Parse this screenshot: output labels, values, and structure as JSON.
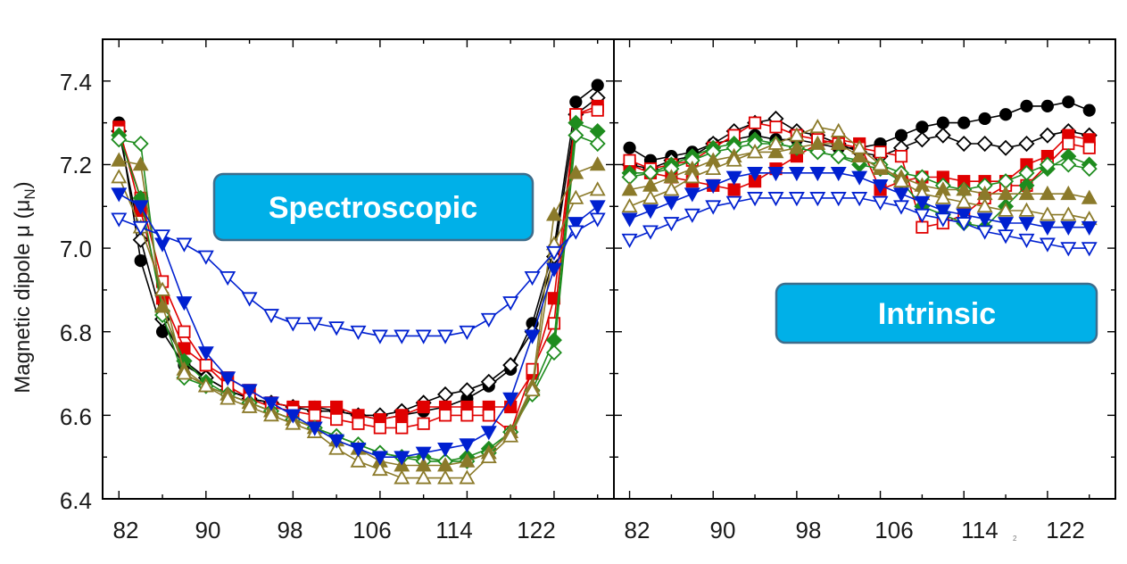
{
  "y_axis": {
    "label": "Magnetic dipole μ (μ",
    "sub": "N",
    "close": ")",
    "ticks": [
      "6.4",
      "6.6",
      "6.8",
      "7.0",
      "7.2",
      "7.4"
    ]
  },
  "x_ticks": [
    "82",
    "90",
    "98",
    "106",
    "114",
    "122"
  ],
  "footnote": "2",
  "chart_data": [
    {
      "type": "line",
      "badge": "Spectroscopic",
      "xlim": [
        80.5,
        127.5
      ],
      "ylim": [
        6.4,
        7.5
      ],
      "x": [
        82,
        84,
        86,
        88,
        90,
        92,
        94,
        96,
        98,
        100,
        102,
        104,
        106,
        108,
        110,
        112,
        114,
        116,
        118,
        120,
        122,
        124,
        126
      ],
      "series": [
        {
          "name": "black filled circle",
          "marker": "circle",
          "filled": true,
          "color": "#000000",
          "values": [
            7.3,
            6.97,
            6.8,
            6.72,
            6.69,
            6.66,
            6.64,
            6.63,
            6.62,
            6.62,
            6.61,
            6.6,
            6.59,
            6.6,
            6.61,
            6.62,
            6.64,
            6.67,
            6.71,
            6.82,
            7.0,
            7.35,
            7.39
          ]
        },
        {
          "name": "black open diamond",
          "marker": "diamond",
          "filled": false,
          "color": "#000000",
          "values": [
            7.28,
            7.02,
            6.83,
            6.73,
            6.69,
            6.66,
            6.64,
            6.63,
            6.62,
            6.61,
            6.61,
            6.6,
            6.6,
            6.61,
            6.63,
            6.65,
            6.66,
            6.68,
            6.72,
            6.8,
            6.98,
            7.32,
            7.36
          ]
        },
        {
          "name": "red filled square",
          "marker": "square",
          "filled": true,
          "color": "#e00000",
          "values": [
            7.29,
            7.09,
            6.88,
            6.76,
            6.72,
            6.69,
            6.66,
            6.63,
            6.62,
            6.62,
            6.62,
            6.6,
            6.59,
            6.6,
            6.62,
            6.62,
            6.62,
            6.62,
            6.62,
            6.7,
            6.88,
            7.32,
            7.34
          ]
        },
        {
          "name": "red open square",
          "marker": "square",
          "filled": false,
          "color": "#e00000",
          "values": [
            7.28,
            7.12,
            6.92,
            6.8,
            6.72,
            6.67,
            6.64,
            6.62,
            6.61,
            6.6,
            6.59,
            6.58,
            6.57,
            6.57,
            6.58,
            6.6,
            6.6,
            6.6,
            6.56,
            6.71,
            6.82,
            7.32,
            7.33
          ]
        },
        {
          "name": "green filled diamond",
          "marker": "diamond",
          "filled": true,
          "color": "#1e8c1e",
          "values": [
            7.27,
            7.12,
            6.85,
            6.73,
            6.68,
            6.65,
            6.63,
            6.61,
            6.59,
            6.57,
            6.55,
            6.53,
            6.51,
            6.5,
            6.5,
            6.49,
            6.5,
            6.52,
            6.56,
            6.66,
            6.78,
            7.3,
            7.28
          ]
        },
        {
          "name": "green open diamond",
          "marker": "diamond",
          "filled": false,
          "color": "#1e8c1e",
          "values": [
            7.26,
            7.25,
            6.84,
            6.69,
            6.67,
            6.65,
            6.63,
            6.61,
            6.59,
            6.57,
            6.55,
            6.53,
            6.51,
            6.5,
            6.49,
            6.49,
            6.49,
            6.51,
            6.56,
            6.65,
            6.75,
            7.27,
            7.25
          ]
        },
        {
          "name": "olive filled triangle",
          "marker": "triangle-up",
          "filled": true,
          "color": "#8b7a2a",
          "values": [
            7.21,
            7.2,
            6.86,
            6.71,
            6.67,
            6.65,
            6.63,
            6.61,
            6.59,
            6.57,
            6.54,
            6.52,
            6.49,
            6.48,
            6.48,
            6.48,
            6.49,
            6.51,
            6.56,
            6.67,
            7.08,
            7.18,
            7.2
          ]
        },
        {
          "name": "olive open triangle",
          "marker": "triangle-up",
          "filled": false,
          "color": "#8b7a2a",
          "values": [
            7.17,
            7.05,
            6.9,
            6.7,
            6.67,
            6.64,
            6.62,
            6.6,
            6.58,
            6.56,
            6.52,
            6.49,
            6.47,
            6.45,
            6.45,
            6.45,
            6.45,
            6.5,
            6.55,
            6.66,
            7.01,
            7.12,
            7.14
          ]
        },
        {
          "name": "blue filled triangle down",
          "marker": "triangle-down",
          "filled": true,
          "color": "#0020d0",
          "values": [
            7.13,
            7.1,
            7.01,
            6.87,
            6.75,
            6.69,
            6.66,
            6.63,
            6.6,
            6.57,
            6.54,
            6.52,
            6.5,
            6.5,
            6.51,
            6.52,
            6.53,
            6.56,
            6.64,
            6.79,
            6.95,
            7.06,
            7.1
          ]
        },
        {
          "name": "blue open triangle down",
          "marker": "triangle-down",
          "filled": false,
          "color": "#0020d0",
          "values": [
            7.07,
            7.05,
            7.03,
            7.01,
            6.98,
            6.93,
            6.88,
            6.84,
            6.82,
            6.82,
            6.81,
            6.8,
            6.79,
            6.79,
            6.79,
            6.79,
            6.8,
            6.83,
            6.87,
            6.93,
            6.99,
            7.04,
            7.07
          ]
        }
      ]
    },
    {
      "type": "line",
      "badge": "Intrinsic",
      "xlim": [
        80.5,
        128.5
      ],
      "ylim": [
        6.4,
        7.5
      ],
      "x": [
        82,
        84,
        86,
        88,
        90,
        92,
        94,
        96,
        98,
        100,
        102,
        104,
        106,
        108,
        110,
        112,
        114,
        116,
        118,
        120,
        122,
        124,
        126
      ],
      "series": [
        {
          "name": "black filled circle",
          "marker": "circle",
          "filled": true,
          "color": "#000000",
          "values": [
            7.24,
            7.21,
            7.22,
            7.23,
            7.25,
            7.26,
            7.27,
            7.26,
            7.26,
            7.25,
            7.24,
            7.24,
            7.25,
            7.27,
            7.29,
            7.3,
            7.3,
            7.31,
            7.32,
            7.34,
            7.34,
            7.35,
            7.33
          ]
        },
        {
          "name": "black open diamond",
          "marker": "diamond",
          "filled": false,
          "color": "#000000",
          "values": [
            7.2,
            7.19,
            7.21,
            7.22,
            7.25,
            7.28,
            7.3,
            7.31,
            7.28,
            7.27,
            7.25,
            7.23,
            7.22,
            7.24,
            7.26,
            7.27,
            7.25,
            7.25,
            7.24,
            7.25,
            7.27,
            7.28,
            7.27
          ]
        },
        {
          "name": "red filled square",
          "marker": "square",
          "filled": true,
          "color": "#e00000",
          "values": [
            7.2,
            7.18,
            7.17,
            7.16,
            7.15,
            7.14,
            7.16,
            7.19,
            7.22,
            7.25,
            7.26,
            7.25,
            7.14,
            7.16,
            7.17,
            7.17,
            7.16,
            7.16,
            7.16,
            7.2,
            7.22,
            7.27,
            7.26
          ]
        },
        {
          "name": "red open square",
          "marker": "square",
          "filled": false,
          "color": "#e00000",
          "values": [
            7.21,
            7.19,
            7.2,
            7.21,
            7.24,
            7.27,
            7.3,
            7.29,
            7.27,
            7.26,
            7.25,
            7.24,
            7.23,
            7.22,
            7.05,
            7.06,
            7.08,
            7.12,
            7.15,
            7.15,
            7.2,
            7.25,
            7.24
          ]
        },
        {
          "name": "green filled diamond",
          "marker": "diamond",
          "filled": true,
          "color": "#1e8c1e",
          "values": [
            7.18,
            7.18,
            7.2,
            7.22,
            7.24,
            7.25,
            7.26,
            7.25,
            7.24,
            7.23,
            7.22,
            7.2,
            7.19,
            7.16,
            7.1,
            7.08,
            7.06,
            7.05,
            7.1,
            7.15,
            7.19,
            7.22,
            7.2
          ]
        },
        {
          "name": "green open diamond",
          "marker": "diamond",
          "filled": false,
          "color": "#1e8c1e",
          "values": [
            7.17,
            7.18,
            7.19,
            7.21,
            7.23,
            7.24,
            7.25,
            7.25,
            7.24,
            7.23,
            7.22,
            7.21,
            7.2,
            7.18,
            7.17,
            7.15,
            7.14,
            7.15,
            7.16,
            7.18,
            7.2,
            7.2,
            7.19
          ]
        },
        {
          "name": "olive filled triangle",
          "marker": "triangle-up",
          "filled": true,
          "color": "#8b7a2a",
          "values": [
            7.14,
            7.15,
            7.17,
            7.19,
            7.21,
            7.22,
            7.23,
            7.23,
            7.24,
            7.25,
            7.25,
            7.22,
            7.19,
            7.17,
            7.15,
            7.14,
            7.14,
            7.13,
            7.13,
            7.13,
            7.13,
            7.13,
            7.12
          ]
        },
        {
          "name": "olive open triangle",
          "marker": "triangle-up",
          "filled": false,
          "color": "#8b7a2a",
          "values": [
            7.1,
            7.12,
            7.14,
            7.17,
            7.19,
            7.21,
            7.23,
            7.25,
            7.27,
            7.29,
            7.28,
            7.24,
            7.2,
            7.16,
            7.13,
            7.12,
            7.11,
            7.1,
            7.09,
            7.09,
            7.08,
            7.08,
            7.07
          ]
        },
        {
          "name": "blue filled triangle down",
          "marker": "triangle-down",
          "filled": true,
          "color": "#0020d0",
          "values": [
            7.07,
            7.09,
            7.11,
            7.13,
            7.15,
            7.17,
            7.18,
            7.18,
            7.18,
            7.18,
            7.18,
            7.17,
            7.15,
            7.13,
            7.11,
            7.09,
            7.08,
            7.07,
            7.06,
            7.06,
            7.05,
            7.05,
            7.05
          ]
        },
        {
          "name": "blue open triangle down",
          "marker": "triangle-down",
          "filled": false,
          "color": "#0020d0",
          "values": [
            7.02,
            7.04,
            7.06,
            7.08,
            7.1,
            7.11,
            7.12,
            7.12,
            7.12,
            7.12,
            7.12,
            7.12,
            7.11,
            7.1,
            7.08,
            7.07,
            7.06,
            7.04,
            7.03,
            7.02,
            7.01,
            7.0,
            7.0
          ]
        }
      ]
    }
  ]
}
